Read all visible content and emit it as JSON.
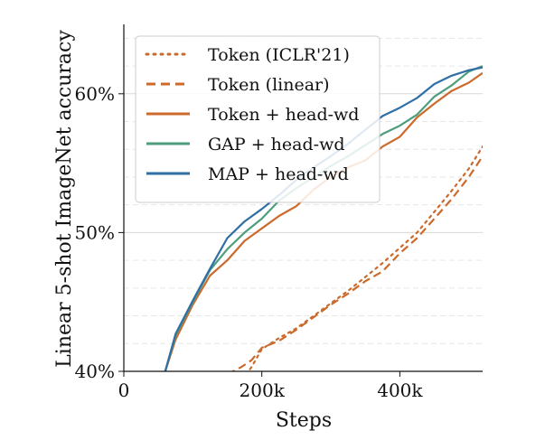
{
  "chart_data": {
    "type": "line",
    "xlabel": "Steps",
    "ylabel": "Linear 5-shot ImageNet accuracy",
    "xlim": [
      0,
      520000
    ],
    "ylim": [
      40,
      65
    ],
    "x_ticks": [
      0,
      200000,
      400000
    ],
    "x_tick_labels": [
      "0",
      "200k",
      "400k"
    ],
    "y_ticks": [
      40,
      50,
      60
    ],
    "y_tick_labels": [
      "40%",
      "50%",
      "60%"
    ],
    "y_minor_gridlines": [
      42,
      44,
      46,
      48,
      52,
      54,
      56,
      58,
      62,
      64
    ],
    "grid": true,
    "legend_position": "top-left",
    "series": [
      {
        "name": "Token (ICLR'21)",
        "color": "#cc6a2c",
        "style": "dotted",
        "x": [
          165000,
          175000,
          185000,
          200000,
          225000,
          250000,
          275000,
          300000,
          325000,
          350000,
          375000,
          400000,
          425000,
          450000,
          475000,
          500000,
          520000
        ],
        "y": [
          39.0,
          39.6,
          40.3,
          41.6,
          42.4,
          43.1,
          44.0,
          44.9,
          45.8,
          46.8,
          47.8,
          48.9,
          50.0,
          51.5,
          53.0,
          54.6,
          56.2
        ]
      },
      {
        "name": "Token (linear)",
        "color": "#cc6a2c",
        "style": "dashed",
        "x": [
          150000,
          170000,
          185000,
          200000,
          225000,
          250000,
          275000,
          300000,
          325000,
          350000,
          375000,
          400000,
          425000,
          450000,
          475000,
          500000,
          520000
        ],
        "y": [
          39.8,
          40.3,
          40.8,
          41.7,
          42.2,
          43.0,
          43.9,
          44.8,
          45.6,
          46.5,
          47.2,
          48.5,
          49.6,
          51.0,
          52.4,
          54.0,
          55.5
        ]
      },
      {
        "name": "Token + head-wd",
        "color": "#cc6a2c",
        "style": "solid",
        "x": [
          60000,
          75000,
          100000,
          125000,
          150000,
          175000,
          200000,
          225000,
          250000,
          275000,
          300000,
          325000,
          350000,
          375000,
          400000,
          425000,
          450000,
          475000,
          500000,
          520000
        ],
        "y": [
          40.0,
          42.3,
          44.8,
          46.9,
          48.0,
          49.4,
          50.3,
          51.2,
          51.9,
          53.1,
          54.0,
          54.7,
          55.2,
          56.2,
          56.9,
          58.3,
          59.3,
          60.2,
          60.8,
          61.5
        ]
      },
      {
        "name": "GAP + head-wd",
        "color": "#4c9e7d",
        "style": "solid",
        "x": [
          60000,
          75000,
          100000,
          125000,
          150000,
          175000,
          200000,
          225000,
          250000,
          275000,
          300000,
          325000,
          350000,
          375000,
          400000,
          425000,
          450000,
          475000,
          500000,
          520000
        ],
        "y": [
          40.0,
          42.6,
          45.0,
          47.3,
          48.8,
          50.0,
          51.0,
          52.3,
          53.2,
          54.0,
          54.8,
          55.5,
          56.3,
          57.1,
          57.7,
          58.5,
          59.8,
          60.6,
          61.6,
          62.0
        ]
      },
      {
        "name": "MAP + head-wd",
        "color": "#2f6fa6",
        "style": "solid",
        "x": [
          60000,
          75000,
          100000,
          125000,
          150000,
          175000,
          200000,
          225000,
          250000,
          275000,
          300000,
          325000,
          350000,
          375000,
          400000,
          425000,
          450000,
          475000,
          500000,
          520000
        ],
        "y": [
          40.0,
          42.7,
          45.1,
          47.4,
          49.6,
          50.8,
          51.7,
          52.7,
          53.8,
          54.7,
          55.5,
          56.4,
          57.4,
          58.4,
          59.0,
          59.7,
          60.7,
          61.3,
          61.7,
          61.9
        ]
      }
    ]
  }
}
